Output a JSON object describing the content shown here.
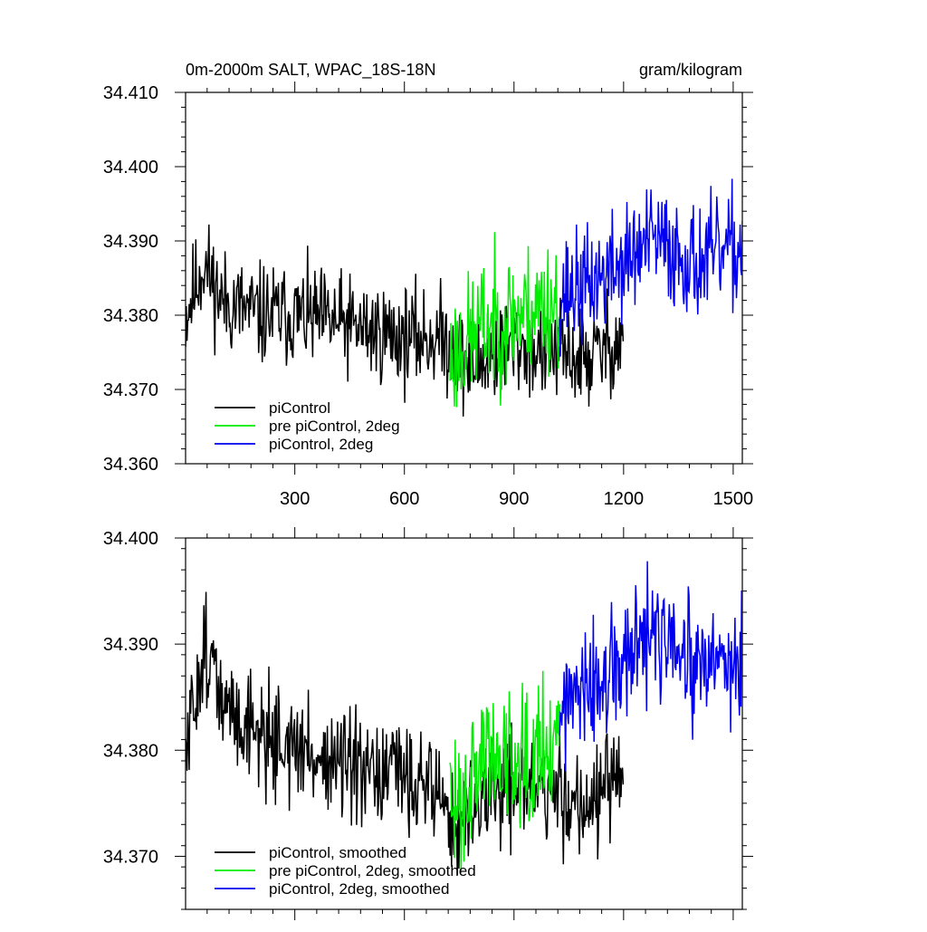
{
  "figure": {
    "title_left": "0m-2000m SALT, WPAC_18S-18N",
    "title_right": "gram/kilogram"
  },
  "colors": {
    "piControl": "#000000",
    "pre_piControl_2deg": "#00ee00",
    "piControl_2deg": "#0000ee"
  },
  "chart_data": [
    {
      "type": "line",
      "title": "0m-2000m SALT, WPAC_18S-18N",
      "units": "gram/kilogram",
      "xlim": [
        1,
        1525
      ],
      "ylim": [
        34.36,
        34.41
      ],
      "x_ticks": [
        300,
        600,
        900,
        1200,
        1500
      ],
      "x_tick_labels": [
        "300",
        "600",
        "900",
        "1200",
        "1500"
      ],
      "y_ticks": [
        34.36,
        34.37,
        34.38,
        34.39,
        34.4,
        34.41
      ],
      "y_tick_labels": [
        "34.360",
        "34.370",
        "34.380",
        "34.390",
        "34.400",
        "34.410"
      ],
      "legend": [
        "piControl",
        "pre piControl, 2deg",
        "piControl, 2deg"
      ],
      "legend_position": "bottom-left",
      "series": [
        {
          "name": "piControl",
          "color": "#000000",
          "x_start": 1,
          "x_end": 1200,
          "seed": 11,
          "noise": 0.0085,
          "anchors": [
            [
              1,
              34.38
            ],
            [
              50,
              34.387
            ],
            [
              100,
              34.382
            ],
            [
              200,
              34.38
            ],
            [
              300,
              34.38
            ],
            [
              400,
              34.379
            ],
            [
              500,
              34.378
            ],
            [
              600,
              34.377
            ],
            [
              700,
              34.377
            ],
            [
              780,
              34.373
            ],
            [
              900,
              34.376
            ],
            [
              1000,
              34.375
            ],
            [
              1100,
              34.374
            ],
            [
              1200,
              34.377
            ]
          ]
        },
        {
          "name": "pre piControl, 2deg",
          "color": "#00ee00",
          "x_start": 725,
          "x_end": 1025,
          "seed": 23,
          "noise": 0.011,
          "anchors": [
            [
              725,
              34.374
            ],
            [
              800,
              34.378
            ],
            [
              900,
              34.38
            ],
            [
              1025,
              34.382
            ]
          ]
        },
        {
          "name": "piControl, 2deg",
          "color": "#0000ee",
          "x_start": 1025,
          "x_end": 1525,
          "seed": 37,
          "noise": 0.0095,
          "anchors": [
            [
              1025,
              34.383
            ],
            [
              1100,
              34.384
            ],
            [
              1200,
              34.387
            ],
            [
              1280,
              34.39
            ],
            [
              1400,
              34.387
            ],
            [
              1525,
              34.389
            ]
          ]
        }
      ]
    },
    {
      "type": "line",
      "xlim": [
        1,
        1525
      ],
      "ylim": [
        34.365,
        34.4
      ],
      "x_ticks": [
        300,
        600,
        900,
        1200,
        1500
      ],
      "y_ticks": [
        34.37,
        34.38,
        34.39,
        34.4
      ],
      "y_tick_labels": [
        "34.370",
        "34.380",
        "34.390",
        "34.400"
      ],
      "legend": [
        "piControl, smoothed",
        "pre piControl, 2deg, smoothed",
        "piControl, 2deg, smoothed"
      ],
      "legend_position": "bottom-left",
      "series": [
        {
          "name": "piControl, smoothed",
          "color": "#000000",
          "x_start": 1,
          "x_end": 1200,
          "seed": 51,
          "noise": 0.0065,
          "anchors": [
            [
              1,
              34.379
            ],
            [
              40,
              34.388
            ],
            [
              60,
              34.39
            ],
            [
              100,
              34.384
            ],
            [
              200,
              34.382
            ],
            [
              300,
              34.38
            ],
            [
              400,
              34.379
            ],
            [
              500,
              34.377
            ],
            [
              600,
              34.378
            ],
            [
              700,
              34.376
            ],
            [
              740,
              34.372
            ],
            [
              800,
              34.375
            ],
            [
              900,
              34.377
            ],
            [
              1000,
              34.376
            ],
            [
              1100,
              34.375
            ],
            [
              1200,
              34.377
            ]
          ]
        },
        {
          "name": "pre piControl, 2deg, smoothed",
          "color": "#00ee00",
          "x_start": 725,
          "x_end": 1025,
          "seed": 63,
          "noise": 0.0085,
          "anchors": [
            [
              725,
              34.374
            ],
            [
              800,
              34.379
            ],
            [
              900,
              34.38
            ],
            [
              1025,
              34.381
            ]
          ]
        },
        {
          "name": "piControl, 2deg, smoothed",
          "color": "#0000ee",
          "x_start": 1025,
          "x_end": 1525,
          "seed": 77,
          "noise": 0.0075,
          "anchors": [
            [
              1025,
              34.384
            ],
            [
              1100,
              34.385
            ],
            [
              1200,
              34.388
            ],
            [
              1280,
              34.391
            ],
            [
              1400,
              34.387
            ],
            [
              1525,
              34.389
            ]
          ]
        }
      ]
    }
  ]
}
